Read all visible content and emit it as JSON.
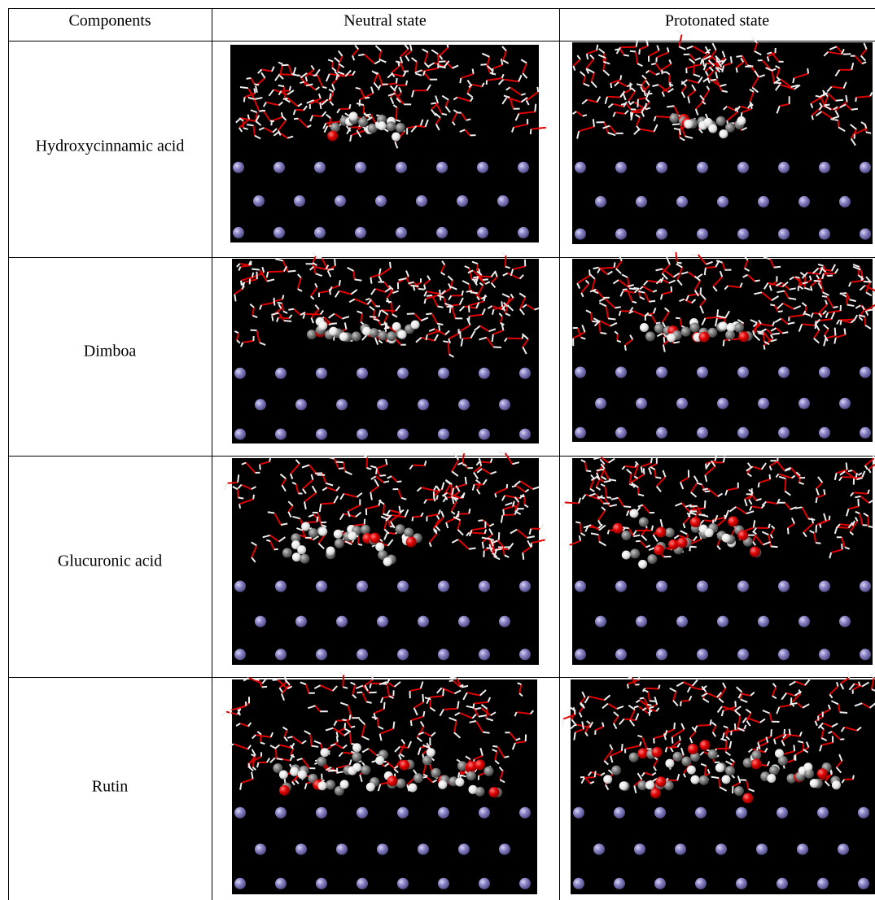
{
  "table": {
    "header": [
      "Components",
      "Neutral state",
      "Protonated state"
    ],
    "rows": [
      [
        "Hydroxycinnamic acid"
      ],
      [
        "Dimboa"
      ],
      [
        "Glucuronic acid"
      ],
      [
        "Rutin"
      ]
    ]
  }
}
